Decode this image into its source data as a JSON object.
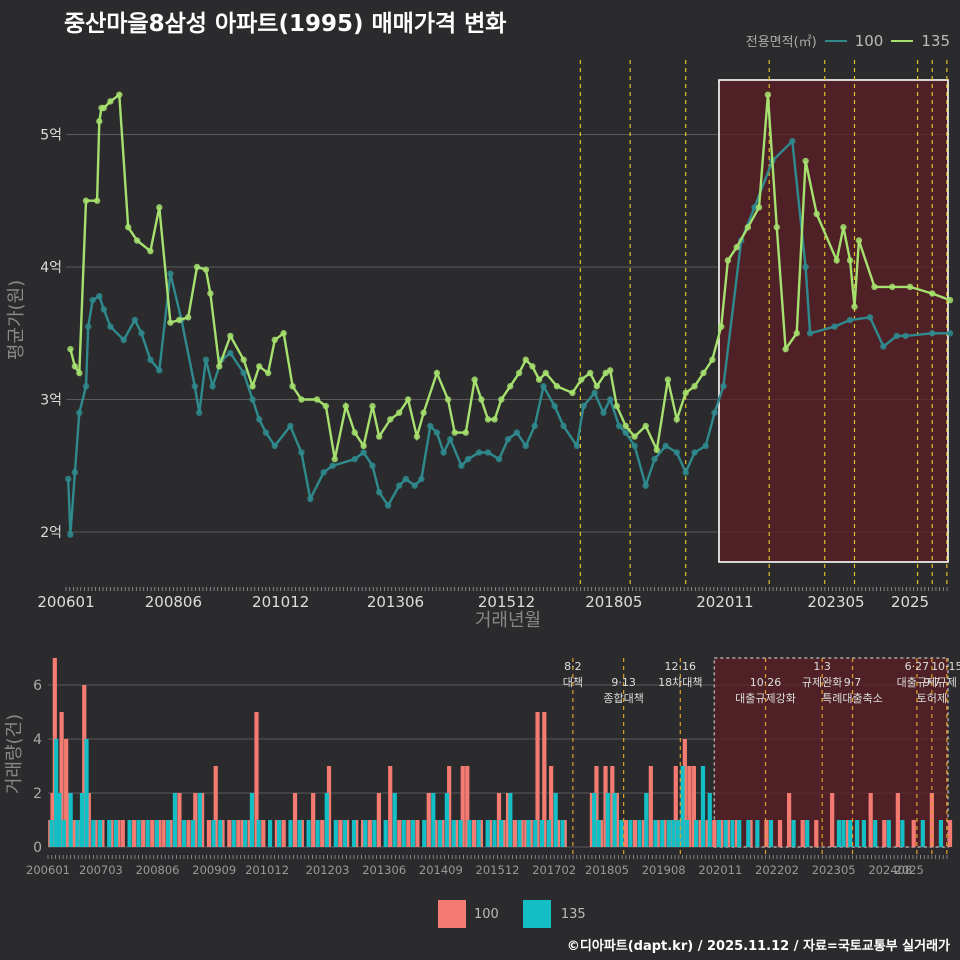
{
  "title": "중산마을8삼성 아파트(1995) 매매가격 변화",
  "credit": "©디아파트(dapt.kr) / 2025.11.12 / 자료=국토교통부 실거래가",
  "legend_top": {
    "title": "전용면적(㎡)",
    "items": [
      {
        "label": "100",
        "color": "#2f8a8e"
      },
      {
        "label": "135",
        "color": "#a6e16f"
      }
    ]
  },
  "legend_bottom": {
    "items": [
      {
        "label": "100",
        "color": "#f47b71"
      },
      {
        "label": "135",
        "color": "#13bfc5"
      }
    ]
  },
  "chart_data": [
    {
      "type": "line",
      "title": "중산마을8삼성 아파트(1995) 매매가격 변화",
      "xlabel": "거래년월",
      "ylabel": "평균가(원)",
      "ylim": [
        1.6,
        5.6
      ],
      "y_ticks": [
        2,
        3,
        4,
        5
      ],
      "y_tick_labels": [
        "2억",
        "3억",
        "4억",
        "5억"
      ],
      "x_range": [
        2006.0,
        2025.9
      ],
      "x_ticks": [
        2006.0,
        2008.417,
        2010.833,
        2013.417,
        2015.917,
        2018.333,
        2020.833,
        2023.333,
        2025.0
      ],
      "x_tick_labels": [
        "200601",
        "200806",
        "201012",
        "201306",
        "201512",
        "201805",
        "202011",
        "202305",
        "2025"
      ],
      "highlight_range": [
        2020.7,
        2025.9
      ],
      "policy_lines": [
        2017.58,
        2018.7,
        2019.95,
        2021.83,
        2023.08,
        2023.75,
        2025.17,
        2025.5,
        2025.83
      ],
      "series": [
        {
          "name": "100",
          "x": [
            2006.05,
            2006.1,
            2006.2,
            2006.3,
            2006.45,
            2006.5,
            2006.6,
            2006.75,
            2006.85,
            2007.0,
            2007.3,
            2007.55,
            2007.7,
            2007.9,
            2008.1,
            2008.35,
            2008.6,
            2008.9,
            2009.0,
            2009.15,
            2009.3,
            2009.5,
            2009.7,
            2010.0,
            2010.2,
            2010.35,
            2010.5,
            2010.7,
            2011.05,
            2011.3,
            2011.5,
            2011.8,
            2012.0,
            2012.5,
            2012.7,
            2012.9,
            2013.05,
            2013.25,
            2013.5,
            2013.65,
            2013.85,
            2014.0,
            2014.2,
            2014.35,
            2014.5,
            2014.65,
            2014.9,
            2015.05,
            2015.3,
            2015.5,
            2015.75,
            2015.95,
            2016.15,
            2016.35,
            2016.55,
            2016.75,
            2017.0,
            2017.2,
            2017.5,
            2017.65,
            2017.9,
            2018.1,
            2018.25,
            2018.45,
            2018.6,
            2018.8,
            2019.05,
            2019.25,
            2019.5,
            2019.75,
            2019.95,
            2020.15,
            2020.4,
            2020.6,
            2020.8,
            2021.2,
            2021.5,
            2021.9,
            2022.35,
            2022.65,
            2022.75,
            2023.3,
            2023.65,
            2024.1,
            2024.4,
            2024.7,
            2024.9,
            2025.5,
            2025.9
          ],
          "y": [
            2.4,
            1.98,
            2.45,
            2.9,
            3.1,
            3.55,
            3.75,
            3.78,
            3.68,
            3.55,
            3.45,
            3.6,
            3.5,
            3.3,
            3.22,
            3.95,
            3.6,
            3.1,
            2.9,
            3.3,
            3.1,
            3.3,
            3.35,
            3.2,
            3.0,
            2.85,
            2.75,
            2.65,
            2.8,
            2.6,
            2.25,
            2.45,
            2.5,
            2.55,
            2.6,
            2.5,
            2.3,
            2.2,
            2.35,
            2.4,
            2.35,
            2.4,
            2.8,
            2.75,
            2.6,
            2.7,
            2.5,
            2.55,
            2.6,
            2.6,
            2.55,
            2.7,
            2.75,
            2.65,
            2.8,
            3.1,
            2.95,
            2.8,
            2.65,
            2.95,
            3.05,
            2.9,
            3.0,
            2.8,
            2.75,
            2.65,
            2.35,
            2.55,
            2.65,
            2.6,
            2.45,
            2.6,
            2.65,
            2.9,
            3.1,
            4.2,
            4.45,
            4.8,
            4.95,
            4.0,
            3.5,
            3.55,
            3.6,
            3.62,
            3.4,
            3.48,
            3.48,
            3.5,
            3.5
          ]
        },
        {
          "name": "135",
          "x": [
            2006.1,
            2006.2,
            2006.3,
            2006.45,
            2006.7,
            2006.75,
            2006.8,
            2006.85,
            2007.0,
            2007.2,
            2007.4,
            2007.6,
            2007.9,
            2008.1,
            2008.35,
            2008.55,
            2008.75,
            2008.95,
            2009.15,
            2009.25,
            2009.45,
            2009.7,
            2010.0,
            2010.2,
            2010.35,
            2010.55,
            2010.7,
            2010.9,
            2011.1,
            2011.3,
            2011.65,
            2011.85,
            2012.05,
            2012.3,
            2012.5,
            2012.7,
            2012.9,
            2013.05,
            2013.3,
            2013.5,
            2013.7,
            2013.9,
            2014.05,
            2014.35,
            2014.6,
            2014.75,
            2015.0,
            2015.2,
            2015.35,
            2015.5,
            2015.65,
            2015.8,
            2016.0,
            2016.2,
            2016.35,
            2016.5,
            2016.65,
            2016.8,
            2017.05,
            2017.4,
            2017.6,
            2017.8,
            2017.95,
            2018.15,
            2018.25,
            2018.4,
            2018.6,
            2018.8,
            2019.05,
            2019.3,
            2019.55,
            2019.75,
            2019.95,
            2020.15,
            2020.35,
            2020.55,
            2020.75,
            2020.9,
            2021.1,
            2021.35,
            2021.6,
            2021.8,
            2022.0,
            2022.2,
            2022.45,
            2022.65,
            2022.9,
            2023.35,
            2023.5,
            2023.65,
            2023.75,
            2023.85,
            2024.2,
            2024.6,
            2025.0,
            2025.5,
            2025.9
          ],
          "y": [
            3.38,
            3.25,
            3.2,
            4.5,
            4.5,
            5.1,
            5.2,
            5.2,
            5.25,
            5.3,
            4.3,
            4.2,
            4.12,
            4.45,
            3.58,
            3.6,
            3.62,
            4.0,
            3.98,
            3.8,
            3.25,
            3.48,
            3.3,
            3.1,
            3.25,
            3.2,
            3.45,
            3.5,
            3.1,
            3.0,
            3.0,
            2.95,
            2.55,
            2.95,
            2.75,
            2.65,
            2.95,
            2.72,
            2.85,
            2.9,
            3.0,
            2.72,
            2.9,
            3.2,
            3.0,
            2.75,
            2.75,
            3.15,
            3.0,
            2.85,
            2.85,
            3.0,
            3.1,
            3.2,
            3.3,
            3.25,
            3.15,
            3.2,
            3.1,
            3.05,
            3.15,
            3.2,
            3.1,
            3.2,
            3.22,
            2.95,
            2.8,
            2.72,
            2.8,
            2.62,
            3.15,
            2.85,
            3.05,
            3.1,
            3.2,
            3.3,
            3.55,
            4.05,
            4.15,
            4.3,
            4.45,
            5.3,
            4.3,
            3.38,
            3.5,
            4.8,
            4.4,
            4.05,
            4.3,
            4.05,
            3.7,
            4.2,
            3.85,
            3.85,
            3.85,
            3.8,
            3.75
          ]
        }
      ]
    },
    {
      "type": "bar",
      "ylabel": "거래량(건)",
      "ylim": [
        0,
        7
      ],
      "y_ticks": [
        0,
        2,
        4,
        6
      ],
      "x_range": [
        2006.0,
        2025.9
      ],
      "x_ticks": [
        2006.0,
        2007.167,
        2008.417,
        2009.667,
        2010.833,
        2012.167,
        2013.417,
        2014.667,
        2015.917,
        2017.167,
        2018.333,
        2019.583,
        2020.833,
        2022.083,
        2023.333,
        2024.583,
        2025.0
      ],
      "x_tick_labels": [
        "200601",
        "200703",
        "200806",
        "200909",
        "201012",
        "201203",
        "201306",
        "201409",
        "201512",
        "201702",
        "201805",
        "201908",
        "202011",
        "202202",
        "202305",
        "202408",
        "2025"
      ],
      "highlight_range": [
        2020.7,
        2025.9
      ],
      "policy_events": [
        {
          "x": 2017.58,
          "date": "8·2",
          "label": "대책"
        },
        {
          "x": 2018.7,
          "date": "9·13",
          "label": "종합대책"
        },
        {
          "x": 2019.95,
          "date": "12·16",
          "label": "18차대책"
        },
        {
          "x": 2021.83,
          "date": "10·26",
          "label": "대출규제강화"
        },
        {
          "x": 2023.08,
          "date": "1·3",
          "label": "규제완화"
        },
        {
          "x": 2023.75,
          "date": "9·7",
          "label": "특례대출축소"
        },
        {
          "x": 2025.17,
          "date": "6·27",
          "label": "대출규제"
        },
        {
          "x": 2025.5,
          "date": "9·7",
          "label": "토허제"
        },
        {
          "x": 2025.83,
          "date": "10·15",
          "label": "규제"
        }
      ],
      "series": [
        {
          "name": "100",
          "x": [
            2006.05,
            2006.1,
            2006.15,
            2006.2,
            2006.3,
            2006.4,
            2006.45,
            2006.55,
            2006.6,
            2006.7,
            2006.8,
            2006.9,
            2007.05,
            2007.2,
            2007.4,
            2007.55,
            2007.65,
            2007.9,
            2008.1,
            2008.3,
            2008.45,
            2008.55,
            2008.7,
            2008.9,
            2009.1,
            2009.25,
            2009.4,
            2009.55,
            2009.7,
            2009.85,
            2010.0,
            2010.2,
            2010.3,
            2010.45,
            2010.6,
            2010.75,
            2011.05,
            2011.2,
            2011.45,
            2011.6,
            2011.85,
            2012.05,
            2012.2,
            2012.45,
            2012.6,
            2012.8,
            2012.95,
            2013.1,
            2013.3,
            2013.55,
            2013.75,
            2013.95,
            2014.15,
            2014.4,
            2014.55,
            2014.7,
            2014.85,
            2015.0,
            2015.15,
            2015.25,
            2015.4,
            2015.55,
            2015.75,
            2015.95,
            2016.05,
            2016.15,
            2016.3,
            2016.45,
            2016.55,
            2016.65,
            2016.8,
            2016.95,
            2017.1,
            2017.25,
            2017.4,
            2018.0,
            2018.1,
            2018.2,
            2018.3,
            2018.45,
            2018.55,
            2018.75,
            2018.95,
            2019.15,
            2019.3,
            2019.45,
            2019.6,
            2019.75,
            2019.85,
            2019.95,
            2020.05,
            2020.15,
            2020.25,
            2020.4,
            2020.55,
            2020.7,
            2020.85,
            2021.0,
            2021.2,
            2021.5,
            2021.85,
            2022.15,
            2022.35,
            2022.65,
            2022.95,
            2023.3,
            2023.65,
            2023.85,
            2024.15,
            2024.45,
            2024.75,
            2025.1,
            2025.5,
            2025.9
          ],
          "y": [
            1,
            2,
            7,
            1,
            5,
            4,
            2,
            1,
            1,
            1,
            6,
            2,
            1,
            1,
            1,
            1,
            1,
            1,
            1,
            1,
            1,
            1,
            1,
            2,
            1,
            2,
            2,
            1,
            3,
            1,
            1,
            1,
            1,
            1,
            5,
            1,
            1,
            1,
            2,
            1,
            2,
            1,
            3,
            1,
            1,
            1,
            1,
            1,
            2,
            3,
            1,
            1,
            1,
            2,
            1,
            1,
            3,
            1,
            3,
            3,
            1,
            1,
            1,
            2,
            1,
            2,
            1,
            1,
            1,
            1,
            5,
            5,
            3,
            1,
            1,
            2,
            3,
            1,
            3,
            3,
            2,
            1,
            1,
            1,
            3,
            1,
            1,
            1,
            3,
            1,
            4,
            3,
            3,
            1,
            1,
            1,
            1,
            1,
            1,
            1,
            1,
            1,
            2,
            1,
            1,
            2,
            1,
            1,
            2,
            1,
            2,
            1,
            2,
            1
          ]
        },
        {
          "name": "135",
          "x": [
            2006.08,
            2006.18,
            2006.25,
            2006.35,
            2006.5,
            2006.65,
            2006.75,
            2006.85,
            2007.0,
            2007.15,
            2007.35,
            2007.5,
            2007.8,
            2008.0,
            2008.2,
            2008.4,
            2008.65,
            2008.8,
            2009.0,
            2009.2,
            2009.35,
            2009.65,
            2009.8,
            2010.1,
            2010.35,
            2010.5,
            2010.65,
            2010.9,
            2011.1,
            2011.35,
            2011.55,
            2011.75,
            2011.95,
            2012.15,
            2012.35,
            2012.55,
            2012.75,
            2013.0,
            2013.2,
            2013.45,
            2013.65,
            2013.85,
            2014.05,
            2014.3,
            2014.5,
            2014.65,
            2014.8,
            2014.95,
            2015.1,
            2015.3,
            2015.5,
            2015.7,
            2015.85,
            2016.0,
            2016.2,
            2016.4,
            2016.6,
            2016.75,
            2016.9,
            2017.05,
            2017.2,
            2017.35,
            2018.05,
            2018.15,
            2018.35,
            2018.5,
            2018.65,
            2018.85,
            2019.05,
            2019.2,
            2019.4,
            2019.55,
            2019.7,
            2019.8,
            2019.9,
            2020.0,
            2020.1,
            2020.3,
            2020.45,
            2020.6,
            2020.8,
            2020.95,
            2021.1,
            2021.25,
            2021.45,
            2021.65,
            2021.95,
            2022.45,
            2022.75,
            2023.45,
            2023.55,
            2023.7,
            2023.85,
            2024.0,
            2024.25,
            2024.55,
            2024.85,
            2025.3,
            2025.7
          ],
          "y": [
            1,
            4,
            2,
            1,
            2,
            1,
            2,
            4,
            1,
            1,
            1,
            1,
            1,
            1,
            1,
            1,
            1,
            2,
            1,
            1,
            2,
            1,
            1,
            1,
            1,
            2,
            1,
            1,
            1,
            1,
            1,
            1,
            1,
            2,
            1,
            1,
            1,
            1,
            1,
            1,
            2,
            1,
            1,
            1,
            2,
            1,
            2,
            1,
            1,
            1,
            1,
            1,
            1,
            1,
            2,
            1,
            1,
            1,
            1,
            1,
            2,
            1,
            2,
            1,
            2,
            2,
            1,
            1,
            1,
            2,
            1,
            1,
            1,
            1,
            1,
            3,
            1,
            1,
            3,
            2,
            1,
            1,
            1,
            1,
            1,
            1,
            1,
            1,
            1,
            1,
            1,
            1,
            1,
            1,
            1,
            1,
            1,
            1,
            1
          ]
        }
      ]
    }
  ]
}
